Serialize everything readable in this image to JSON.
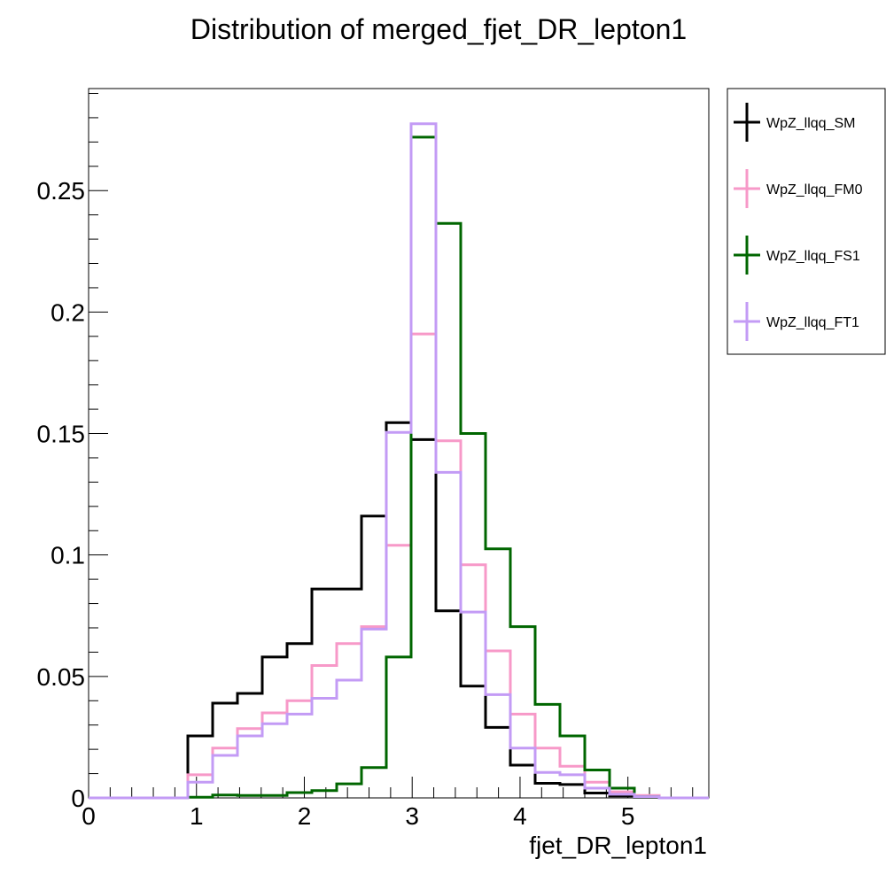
{
  "chart_data": {
    "type": "line",
    "title": "Distribution of merged_fjet_DR_lepton1",
    "xlabel": "fjet_DR_lepton1",
    "ylabel": "",
    "xlim": [
      0,
      5.75
    ],
    "ylim": [
      0,
      0.292
    ],
    "x_ticks": [
      "0",
      "1",
      "2",
      "3",
      "4",
      "5"
    ],
    "y_ticks": [
      "0",
      "0.05",
      "0.1",
      "0.15",
      "0.2",
      "0.25"
    ],
    "bin_edges": [
      0,
      0.23,
      0.46,
      0.69,
      0.92,
      1.15,
      1.38,
      1.61,
      1.84,
      2.07,
      2.3,
      2.53,
      2.76,
      2.99,
      3.22,
      3.45,
      3.68,
      3.91,
      4.14,
      4.37,
      4.6,
      4.83,
      5.06,
      5.29,
      5.52,
      5.75
    ],
    "legend_position": "top-right outside",
    "grid": false,
    "series": [
      {
        "name": "WpZ_llqq_SM",
        "color": "#000000",
        "values": [
          0,
          0,
          0,
          0,
          0.0255,
          0.039,
          0.043,
          0.058,
          0.0635,
          0.086,
          0.086,
          0.116,
          0.1545,
          0.1475,
          0.077,
          0.046,
          0.029,
          0.0135,
          0.006,
          0.0055,
          0.002,
          0.0008,
          0.0003,
          0,
          0
        ]
      },
      {
        "name": "WpZ_llqq_FM0",
        "color": "#f799c8",
        "values": [
          0,
          0,
          0,
          0,
          0.0095,
          0.0205,
          0.0285,
          0.035,
          0.04,
          0.0545,
          0.0635,
          0.0705,
          0.104,
          0.191,
          0.147,
          0.096,
          0.0605,
          0.0345,
          0.0205,
          0.013,
          0.0065,
          0.0025,
          0.001,
          0,
          0
        ]
      },
      {
        "name": "WpZ_llqq_FS1",
        "color": "#006600",
        "values": [
          0,
          0,
          0,
          0,
          0.0003,
          0.0012,
          0.001,
          0.001,
          0.0022,
          0.003,
          0.0058,
          0.0125,
          0.058,
          0.272,
          0.2365,
          0.15,
          0.1025,
          0.0705,
          0.0385,
          0.0255,
          0.0115,
          0.004,
          0.0005,
          0,
          0
        ]
      },
      {
        "name": "WpZ_llqq_FT1",
        "color": "#c39bf5",
        "values": [
          0,
          0,
          0,
          0,
          0.0065,
          0.0175,
          0.0255,
          0.0305,
          0.0345,
          0.041,
          0.0485,
          0.0695,
          0.1505,
          0.2775,
          0.134,
          0.0765,
          0.0425,
          0.0205,
          0.0105,
          0.0095,
          0.004,
          0.0015,
          0.0005,
          0,
          0
        ]
      }
    ]
  }
}
